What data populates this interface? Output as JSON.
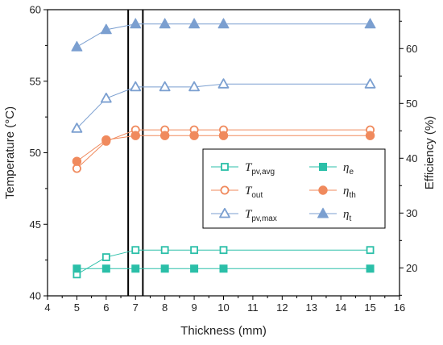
{
  "chart_data": {
    "type": "line",
    "x": [
      5,
      6,
      7,
      8,
      9,
      10,
      15
    ],
    "xlabel": "Thickness (mm)",
    "ylabel_left": "Temperature (°C)",
    "ylabel_right": "Efficiency (%)",
    "xlim": [
      4,
      16
    ],
    "ylim_left": [
      40,
      60
    ],
    "ylim_right": [
      14.9,
      67.1
    ],
    "xticks": [
      4,
      5,
      6,
      7,
      8,
      9,
      10,
      11,
      12,
      13,
      14,
      15,
      16
    ],
    "yticks_left": [
      40,
      45,
      50,
      55,
      60
    ],
    "yticks_right": [
      20,
      30,
      40,
      50,
      60
    ],
    "vertical_lines": [
      6.75,
      7.25
    ],
    "grid": false,
    "legend_position": "center-right",
    "series": [
      {
        "key": "tpv_avg",
        "legend_main": "T",
        "legend_sub": "pv,avg",
        "axis": "left",
        "marker": "square-open",
        "color": "#2bbfa8",
        "values": [
          41.5,
          42.7,
          43.2,
          43.2,
          43.2,
          43.2,
          43.2
        ]
      },
      {
        "key": "tout",
        "legend_main": "T",
        "legend_sub": "out",
        "axis": "left",
        "marker": "circle-open",
        "color": "#f08a5d",
        "values": [
          48.9,
          50.8,
          51.6,
          51.6,
          51.6,
          51.6,
          51.6
        ]
      },
      {
        "key": "tpv_max",
        "legend_main": "T",
        "legend_sub": "pv,max",
        "axis": "left",
        "marker": "triangle-open",
        "color": "#7b9fd0",
        "values": [
          51.7,
          53.8,
          54.6,
          54.6,
          54.6,
          54.8,
          54.8
        ]
      },
      {
        "key": "eta_e",
        "legend_main": "η",
        "legend_sub": "e",
        "axis": "left",
        "marker": "square-filled",
        "color": "#2bbfa8",
        "values": [
          41.9,
          41.9,
          41.9,
          41.9,
          41.9,
          41.9,
          41.9
        ]
      },
      {
        "key": "eta_th",
        "legend_main": "η",
        "legend_sub": "th",
        "axis": "left",
        "marker": "circle-filled",
        "color": "#f08a5d",
        "values": [
          49.4,
          50.9,
          51.2,
          51.2,
          51.2,
          51.2,
          51.2
        ]
      },
      {
        "key": "eta_t",
        "legend_main": "η",
        "legend_sub": "t",
        "axis": "left",
        "marker": "triangle-filled",
        "color": "#7b9fd0",
        "values": [
          57.4,
          58.6,
          59.0,
          59.0,
          59.0,
          59.0,
          59.0
        ]
      }
    ]
  }
}
